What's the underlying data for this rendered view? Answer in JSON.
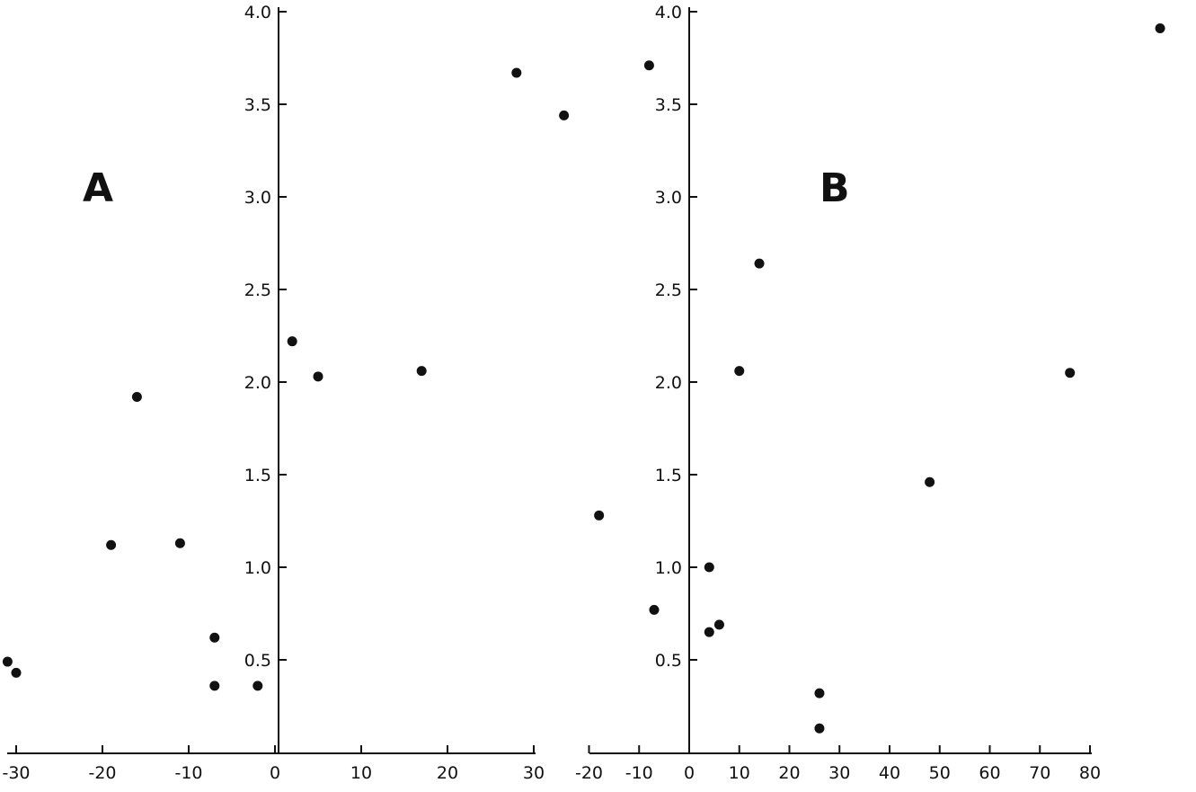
{
  "chart_data": [
    {
      "type": "scatter",
      "panel_label": "A",
      "title": "",
      "xlabel": "",
      "ylabel": "",
      "xlim": [
        -31,
        30
      ],
      "ylim": [
        0,
        4.0
      ],
      "x_ticks": [
        -30,
        -20,
        -10,
        0,
        10,
        20,
        30
      ],
      "x_tick_labels": [
        "-30",
        "-20",
        "-10",
        "0",
        "10",
        "20",
        "30"
      ],
      "y_ticks": [
        0.5,
        1.0,
        1.5,
        2.0,
        2.5,
        3.0,
        3.5,
        4.0
      ],
      "y_tick_labels": [
        "0.5",
        "1.0",
        "1.5",
        "2.0",
        "2.5",
        "3.0",
        "3.5",
        "4.0"
      ],
      "grid": false,
      "color": "#111111",
      "points": [
        {
          "x": 28,
          "y": 3.67
        },
        {
          "x": 2,
          "y": 2.22
        },
        {
          "x": 5,
          "y": 2.03
        },
        {
          "x": 17,
          "y": 2.06
        },
        {
          "x": -16,
          "y": 1.92
        },
        {
          "x": -19,
          "y": 1.12
        },
        {
          "x": -11,
          "y": 1.13
        },
        {
          "x": -7,
          "y": 0.62
        },
        {
          "x": -7,
          "y": 0.36
        },
        {
          "x": -2,
          "y": 0.36
        },
        {
          "x": -31,
          "y": 0.49
        },
        {
          "x": -30,
          "y": 0.43
        }
      ]
    },
    {
      "type": "scatter",
      "panel_label": "B",
      "title": "",
      "xlabel": "",
      "ylabel": "",
      "xlim": [
        -20,
        95
      ],
      "ylim": [
        0,
        4.0
      ],
      "x_ticks": [
        -20,
        -10,
        0,
        10,
        20,
        30,
        40,
        50,
        60,
        70,
        80
      ],
      "x_tick_labels": [
        "-20",
        "-10",
        "0",
        "10",
        "20",
        "30",
        "40",
        "50",
        "60",
        "70",
        "80"
      ],
      "y_ticks": [
        0.5,
        1.0,
        1.5,
        2.0,
        2.5,
        3.0,
        3.5,
        4.0
      ],
      "y_tick_labels": [
        "0.5",
        "1.0",
        "1.5",
        "2.0",
        "2.5",
        "3.0",
        "3.5",
        "4.0"
      ],
      "grid": false,
      "color": "#111111",
      "points": [
        {
          "x": -25,
          "y": 3.44
        },
        {
          "x": -8,
          "y": 3.71
        },
        {
          "x": 94,
          "y": 3.91
        },
        {
          "x": 14,
          "y": 2.64
        },
        {
          "x": 10,
          "y": 2.06
        },
        {
          "x": 76,
          "y": 2.05
        },
        {
          "x": 48,
          "y": 1.46
        },
        {
          "x": -18,
          "y": 1.28
        },
        {
          "x": 4,
          "y": 1.0
        },
        {
          "x": -7,
          "y": 0.77
        },
        {
          "x": 4,
          "y": 0.65
        },
        {
          "x": 6,
          "y": 0.69
        },
        {
          "x": 26,
          "y": 0.32
        },
        {
          "x": 26,
          "y": 0.13
        }
      ]
    }
  ]
}
